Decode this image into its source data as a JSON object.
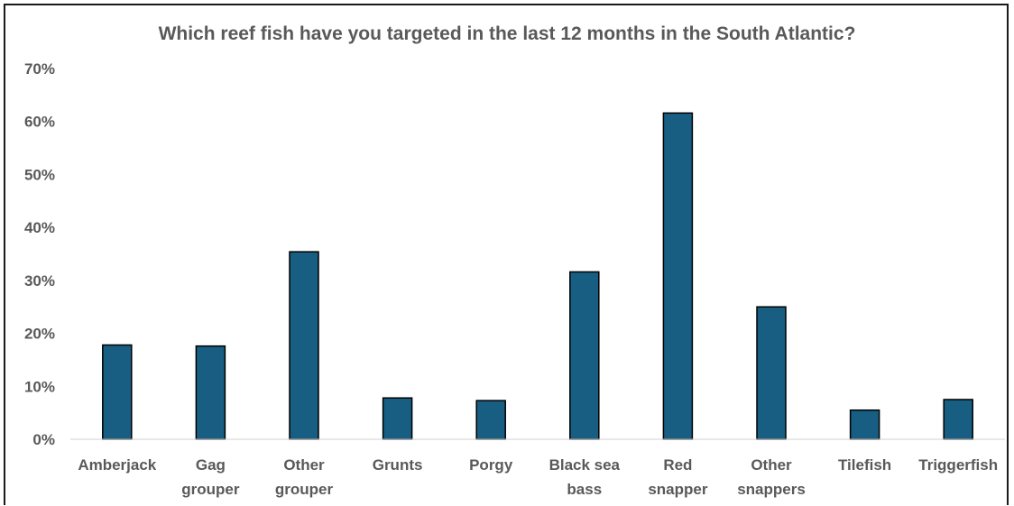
{
  "chart_data": {
    "type": "bar",
    "title": "Which reef fish have you targeted in the last 12 months in the South Atlantic?",
    "categories": [
      [
        "Amberjack"
      ],
      [
        "Gag",
        "grouper"
      ],
      [
        "Other",
        "grouper"
      ],
      [
        "Grunts"
      ],
      [
        "Porgy"
      ],
      [
        "Black sea",
        "bass"
      ],
      [
        "Red",
        "snapper"
      ],
      [
        "Other",
        "snappers"
      ],
      [
        "Tilefish"
      ],
      [
        "Triggerfish"
      ]
    ],
    "values": [
      17.8,
      17.6,
      35.4,
      7.8,
      7.3,
      31.6,
      61.6,
      25.0,
      5.5,
      7.5
    ],
    "ylim": [
      0,
      70
    ],
    "yticks": [
      "0%",
      "10%",
      "20%",
      "30%",
      "40%",
      "50%",
      "60%",
      "70%"
    ],
    "xlabel": "",
    "ylabel": "",
    "grid": false,
    "colors": {
      "bar": "#175e82",
      "bar_edge": "#000000",
      "text": "#595959"
    }
  }
}
